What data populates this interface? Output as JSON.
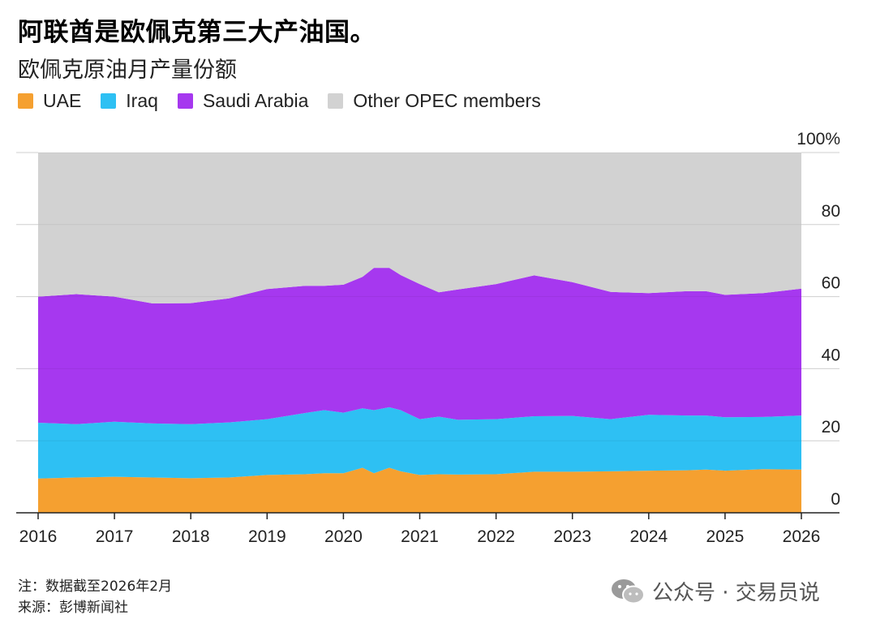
{
  "title": "阿联酋是欧佩克第三大产油国。",
  "subtitle": "欧佩克原油月产量份额",
  "legend": [
    {
      "label": "UAE",
      "color": "#f5a030"
    },
    {
      "label": "Iraq",
      "color": "#2ec0f3"
    },
    {
      "label": "Saudi Arabia",
      "color": "#a638ef"
    },
    {
      "label": "Other OPEC members",
      "color": "#d2d2d2"
    }
  ],
  "note": "注：数据截至2026年2月",
  "source": "来源：彭博新闻社",
  "watermark": {
    "text": "公众号 · 交易员说",
    "icon": "wechat-icon"
  },
  "chart_data": {
    "type": "area",
    "stacked": true,
    "x": [
      2016.0,
      2016.5,
      2017.0,
      2017.5,
      2018.0,
      2018.5,
      2019.0,
      2019.5,
      2019.75,
      2020.0,
      2020.25,
      2020.4,
      2020.6,
      2020.75,
      2021.0,
      2021.25,
      2021.5,
      2022.0,
      2022.5,
      2023.0,
      2023.5,
      2024.0,
      2024.5,
      2024.75,
      2025.0,
      2025.5,
      2026.0
    ],
    "x_ticks": [
      "2016",
      "2017",
      "2018",
      "2019",
      "2020",
      "2021",
      "2022",
      "2023",
      "2024",
      "2025",
      "2026"
    ],
    "y_ticks": [
      "0",
      "20",
      "40",
      "60",
      "80",
      "100%"
    ],
    "ylim": [
      0,
      100
    ],
    "grid": true,
    "series": [
      {
        "name": "UAE",
        "values": [
          9.5,
          9.8,
          10.0,
          9.8,
          9.6,
          9.8,
          10.5,
          10.7,
          11.0,
          11.0,
          12.5,
          11.0,
          12.5,
          11.5,
          10.5,
          10.7,
          10.6,
          10.7,
          11.4,
          11.4,
          11.5,
          11.7,
          11.8,
          12.0,
          11.7,
          12.1,
          12.0
        ]
      },
      {
        "name": "Iraq",
        "values": [
          15.5,
          14.8,
          15.3,
          15.0,
          15.0,
          15.3,
          15.5,
          17.0,
          17.5,
          16.8,
          16.5,
          17.5,
          16.8,
          17.0,
          15.5,
          16.0,
          15.2,
          15.3,
          15.4,
          15.5,
          14.5,
          15.5,
          15.2,
          15.0,
          14.8,
          14.5,
          15.0
        ]
      },
      {
        "name": "Saudi Arabia",
        "values": [
          35.0,
          36.1,
          34.7,
          33.3,
          33.6,
          34.4,
          36.1,
          35.3,
          34.5,
          35.5,
          36.5,
          39.5,
          38.7,
          37.5,
          37.5,
          34.5,
          36.2,
          37.5,
          39.1,
          37.1,
          35.3,
          33.8,
          34.5,
          34.5,
          34.0,
          34.4,
          35.2
        ]
      },
      {
        "name": "Other OPEC members",
        "values": [
          40.0,
          39.3,
          40.0,
          41.9,
          41.8,
          40.5,
          37.9,
          37.0,
          37.0,
          36.7,
          34.5,
          32.0,
          32.0,
          34.0,
          36.5,
          38.8,
          38.0,
          36.5,
          34.1,
          36.0,
          38.7,
          39.0,
          38.5,
          38.5,
          39.5,
          39.0,
          37.8
        ]
      }
    ]
  }
}
